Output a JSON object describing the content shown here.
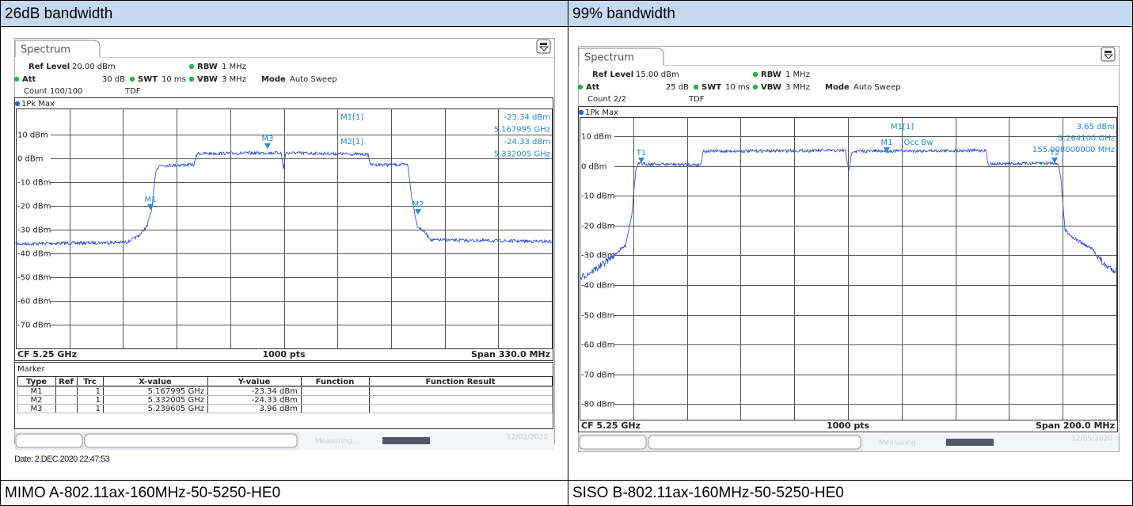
{
  "table": {
    "headers": [
      "26dB bandwidth",
      "99% bandwidth"
    ],
    "captions": [
      "MIMO A-802.11ax-160MHz-50-5250-HE0",
      "SISO B-802.11ax-160MHz-50-5250-HE0"
    ]
  },
  "panels": [
    {
      "tab": "Spectrum",
      "ref_level": {
        "label": "Ref Level",
        "value": "20.00 dBm"
      },
      "att": {
        "label": "Att",
        "value": "30 dB"
      },
      "swt": {
        "label": "SWT",
        "value": "10 ms"
      },
      "rbw": {
        "label": "RBW",
        "value": "1 MHz"
      },
      "vbw": {
        "label": "VBW",
        "value": "3 MHz"
      },
      "mode": {
        "label": "Mode",
        "value": "Auto Sweep"
      },
      "count": "Count 100/100",
      "tdf": "TDF",
      "trace": "1Pk Max",
      "y_labels": [
        "10 dBm",
        "0 dBm",
        "-10 dBm",
        "-20 dBm",
        "-30 dBm",
        "-40 dBm",
        "-50 dBm",
        "-60 dBm",
        "-70 dBm"
      ],
      "readout": [
        {
          "marker": "M1[1]",
          "lines": [
            "-23.34 dBm",
            "5.167995 GHz"
          ]
        },
        {
          "marker": "M2[1]",
          "lines": [
            "-24.33 dBm",
            "5.332005 GHz"
          ]
        }
      ],
      "markers": [
        "M1",
        "M3",
        "M2"
      ],
      "footer": {
        "cf": "CF 5.25 GHz",
        "pts": "1000 pts",
        "span": "Span 330.0 MHz"
      },
      "marker_table": {
        "title": "Marker",
        "columns": [
          "Type",
          "Ref",
          "Trc",
          "X-value",
          "Y-value",
          "Function",
          "Function Result"
        ],
        "rows": [
          [
            "M1",
            "1",
            "5.167995 GHz",
            "-23.34 dBm"
          ],
          [
            "M2",
            "1",
            "5.332005 GHz",
            "-24.33 dBm"
          ],
          [
            "M3",
            "1",
            "5.239605 GHz",
            "3.96 dBm"
          ]
        ]
      },
      "status": "Measuring...",
      "status_date": "12/02/2020",
      "date": "Date: 2.DEC.2020 22:47:53"
    },
    {
      "tab": "Spectrum",
      "ref_level": {
        "label": "Ref Level",
        "value": "15.00 dBm"
      },
      "att": {
        "label": "Att",
        "value": "25 dB"
      },
      "swt": {
        "label": "SWT",
        "value": "10 ms"
      },
      "rbw": {
        "label": "RBW",
        "value": "1 MHz"
      },
      "vbw": {
        "label": "VBW",
        "value": "3 MHz"
      },
      "mode": {
        "label": "Mode",
        "value": "Auto Sweep"
      },
      "count": "Count 2/2",
      "tdf": "TDF",
      "trace": "1Pk Max",
      "y_labels": [
        "10 dBm",
        "0 dBm",
        "-10 dBm",
        "-20 dBm",
        "-30 dBm",
        "-40 dBm",
        "-50 dBm",
        "-60 dBm",
        "-70 dBm",
        "-80 dBm"
      ],
      "readout": [
        {
          "marker": "M1[1]",
          "lines": [
            "3.65 dBm",
            "5.264100 GHz",
            "155.008000000 MHz"
          ]
        }
      ],
      "markers": [
        "T1",
        "T2",
        "M1",
        "Occ Bw"
      ],
      "footer": {
        "cf": "CF 5.25 GHz",
        "pts": "1000 pts",
        "span": "Span 200.0 MHz"
      },
      "status": "Measuring...",
      "status_date": "12/05/2020"
    }
  ]
}
